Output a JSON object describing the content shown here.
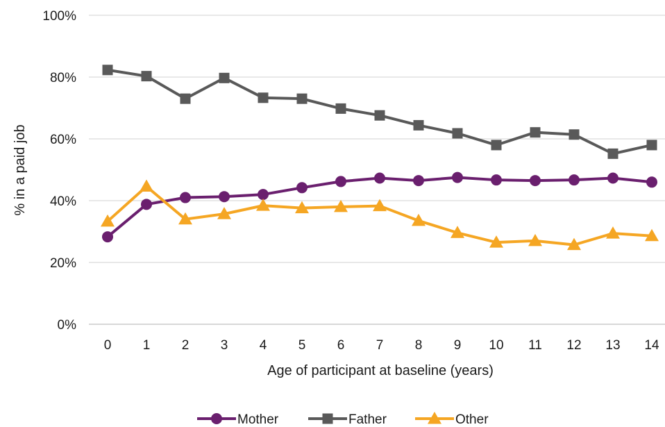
{
  "chart_data": {
    "type": "line",
    "xlabel": "Age of participant at baseline (years)",
    "ylabel": "% in a paid job",
    "x": [
      "0",
      "1",
      "2",
      "3",
      "4",
      "5",
      "6",
      "7",
      "8",
      "9",
      "10",
      "11",
      "12",
      "13",
      "14"
    ],
    "ylim": [
      0,
      100
    ],
    "yticks": [
      "0%",
      "20%",
      "40%",
      "60%",
      "80%",
      "100%"
    ],
    "ytick_values": [
      0,
      20,
      40,
      60,
      80,
      100
    ],
    "grid": true,
    "legend_position": "bottom",
    "series": [
      {
        "name": "Mother",
        "color": "#6a1f6e",
        "marker": "circle",
        "values": [
          28.3,
          38.8,
          41.0,
          41.3,
          42.0,
          44.2,
          46.2,
          47.3,
          46.5,
          47.5,
          46.7,
          46.5,
          46.7,
          47.3,
          46.0
        ]
      },
      {
        "name": "Father",
        "color": "#595959",
        "marker": "square",
        "values": [
          82.3,
          80.3,
          73.0,
          79.7,
          73.3,
          73.0,
          69.8,
          67.6,
          64.4,
          61.8,
          58.0,
          62.1,
          61.4,
          55.2,
          58.0
        ]
      },
      {
        "name": "Other",
        "color": "#f5a623",
        "marker": "triangle",
        "values": [
          33.3,
          44.6,
          34.0,
          35.7,
          38.4,
          37.6,
          38.0,
          38.3,
          33.5,
          29.6,
          26.5,
          27.0,
          25.7,
          29.4,
          28.6
        ]
      }
    ]
  }
}
